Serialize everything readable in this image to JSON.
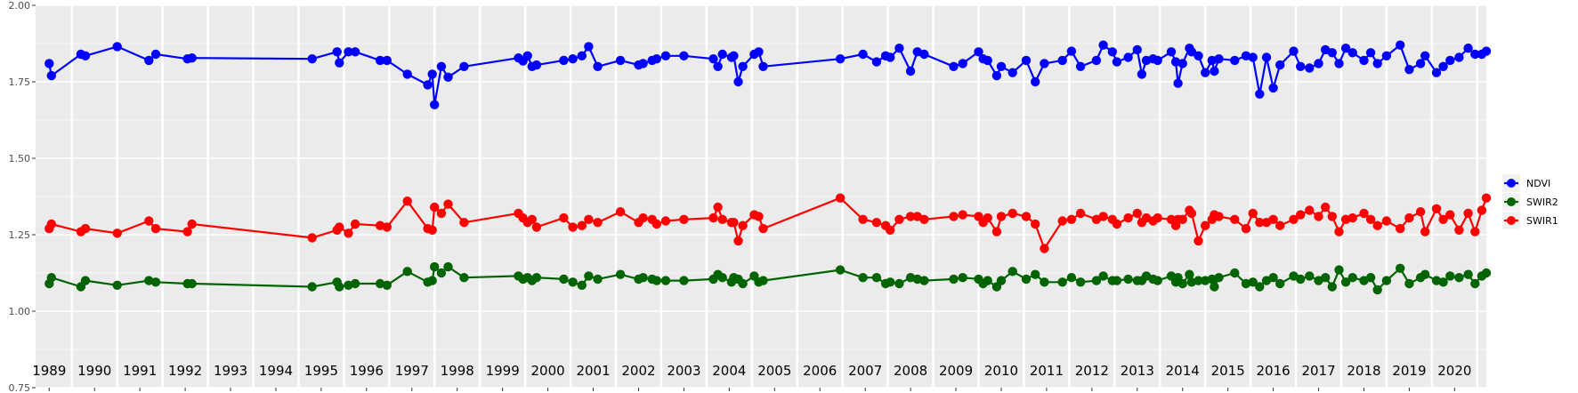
{
  "chart_data": {
    "type": "line",
    "title": "",
    "xlabel": "",
    "ylabel": "",
    "ylim": [
      0.75,
      2.0
    ],
    "xlim": [
      1988.7,
      2020.7
    ],
    "yticks": [
      0.75,
      1.0,
      1.25,
      1.5,
      1.75,
      2.0
    ],
    "ytick_labels": [
      "0.75",
      "1.00",
      "1.25",
      "1.50",
      "1.75",
      "2.00"
    ],
    "x_year_labels": [
      "1989",
      "1990",
      "1991",
      "1992",
      "1993",
      "1994",
      "1995",
      "1996",
      "1997",
      "1998",
      "1999",
      "2000",
      "2001",
      "2002",
      "2003",
      "2004",
      "2005",
      "2006",
      "2007",
      "2008",
      "2009",
      "2010",
      "2011",
      "2012",
      "2013",
      "2014",
      "2015",
      "2016",
      "2017",
      "2018",
      "2019",
      "2020"
    ],
    "grid": true,
    "legend_position": "right",
    "series": [
      {
        "name": "NDVI",
        "color": "#0000ff",
        "x": [
          1989.0,
          1989.05,
          1989.7,
          1989.8,
          1990.5,
          1991.2,
          1991.35,
          1992.05,
          1992.15,
          1994.8,
          1995.35,
          1995.4,
          1995.6,
          1995.75,
          1996.3,
          1996.45,
          1996.9,
          1997.35,
          1997.45,
          1997.5,
          1997.65,
          1997.8,
          1998.15,
          1999.35,
          1999.45,
          1999.55,
          1999.65,
          1999.75,
          2000.35,
          2000.55,
          2000.75,
          2000.9,
          2001.1,
          2001.6,
          2002.0,
          2002.1,
          2002.3,
          2002.4,
          2002.6,
          2003.0,
          2003.65,
          2003.75,
          2003.85,
          2004.05,
          2004.1,
          2004.2,
          2004.3,
          2004.55,
          2004.65,
          2004.75,
          2006.45,
          2006.95,
          2007.25,
          2007.45,
          2007.55,
          2007.75,
          2008.0,
          2008.15,
          2008.3,
          2008.95,
          2009.15,
          2009.5,
          2009.6,
          2009.7,
          2009.9,
          2010.0,
          2010.25,
          2010.55,
          2010.75,
          2010.95,
          2011.35,
          2011.55,
          2011.75,
          2012.1,
          2012.25,
          2012.45,
          2012.55,
          2012.8,
          2013.0,
          2013.1,
          2013.2,
          2013.35,
          2013.45,
          2013.75,
          2013.85,
          2013.9,
          2014.0,
          2014.15,
          2014.2,
          2014.35,
          2014.5,
          2014.65,
          2014.7,
          2014.8,
          2015.15,
          2015.4,
          2015.55,
          2015.7,
          2015.85,
          2016.0,
          2016.15,
          2016.45,
          2016.6,
          2016.8,
          2017.0,
          2017.15,
          2017.3,
          2017.45,
          2017.6,
          2017.75,
          2018.0,
          2018.15,
          2018.3,
          2018.5,
          2018.8,
          2019.0,
          2019.25,
          2019.35,
          2019.6,
          2019.75,
          2019.9,
          2020.1,
          2020.3,
          2020.45,
          2020.6,
          2020.7
        ],
        "values": [
          1.81,
          1.77,
          1.84,
          1.835,
          1.865,
          1.82,
          1.84,
          1.825,
          1.828,
          1.825,
          1.848,
          1.812,
          1.848,
          1.848,
          1.82,
          1.82,
          1.775,
          1.74,
          1.775,
          1.675,
          1.8,
          1.765,
          1.8,
          1.828,
          1.818,
          1.835,
          1.8,
          1.805,
          1.82,
          1.825,
          1.835,
          1.865,
          1.8,
          1.82,
          1.805,
          1.81,
          1.82,
          1.825,
          1.835,
          1.835,
          1.825,
          1.8,
          1.84,
          1.83,
          1.835,
          1.75,
          1.8,
          1.84,
          1.848,
          1.8,
          1.825,
          1.84,
          1.815,
          1.835,
          1.83,
          1.86,
          1.785,
          1.848,
          1.84,
          1.8,
          1.81,
          1.848,
          1.825,
          1.82,
          1.77,
          1.8,
          1.78,
          1.82,
          1.75,
          1.81,
          1.82,
          1.85,
          1.8,
          1.82,
          1.87,
          1.848,
          1.815,
          1.83,
          1.855,
          1.775,
          1.82,
          1.825,
          1.82,
          1.848,
          1.815,
          1.745,
          1.81,
          1.86,
          1.848,
          1.835,
          1.78,
          1.82,
          1.785,
          1.825,
          1.82,
          1.835,
          1.83,
          1.71,
          1.83,
          1.73,
          1.805,
          1.85,
          1.8,
          1.795,
          1.81,
          1.855,
          1.845,
          1.81,
          1.86,
          1.845,
          1.82,
          1.845,
          1.81,
          1.835,
          1.87,
          1.79,
          1.81,
          1.835,
          1.78,
          1.8,
          1.82,
          1.83,
          1.86,
          1.84,
          1.84,
          1.85
        ]
      },
      {
        "name": "SWIR2",
        "color": "#006400",
        "x": [
          1989.0,
          1989.05,
          1989.7,
          1989.8,
          1990.5,
          1991.2,
          1991.35,
          1992.05,
          1992.15,
          1994.8,
          1995.35,
          1995.4,
          1995.6,
          1995.75,
          1996.3,
          1996.45,
          1996.9,
          1997.35,
          1997.45,
          1997.5,
          1997.65,
          1997.8,
          1998.15,
          1999.35,
          1999.45,
          1999.55,
          1999.65,
          1999.75,
          2000.35,
          2000.55,
          2000.75,
          2000.9,
          2001.1,
          2001.6,
          2002.0,
          2002.1,
          2002.3,
          2002.4,
          2002.6,
          2003.0,
          2003.65,
          2003.75,
          2003.85,
          2004.05,
          2004.1,
          2004.2,
          2004.3,
          2004.55,
          2004.65,
          2004.75,
          2006.45,
          2006.95,
          2007.25,
          2007.45,
          2007.55,
          2007.75,
          2008.0,
          2008.15,
          2008.3,
          2008.95,
          2009.15,
          2009.5,
          2009.6,
          2009.7,
          2009.9,
          2010.0,
          2010.25,
          2010.55,
          2010.75,
          2010.95,
          2011.35,
          2011.55,
          2011.75,
          2012.1,
          2012.25,
          2012.45,
          2012.55,
          2012.8,
          2013.0,
          2013.1,
          2013.2,
          2013.35,
          2013.45,
          2013.75,
          2013.85,
          2013.9,
          2014.0,
          2014.15,
          2014.2,
          2014.35,
          2014.5,
          2014.65,
          2014.7,
          2014.8,
          2015.15,
          2015.4,
          2015.55,
          2015.7,
          2015.85,
          2016.0,
          2016.15,
          2016.45,
          2016.6,
          2016.8,
          2017.0,
          2017.15,
          2017.3,
          2017.45,
          2017.6,
          2017.75,
          2018.0,
          2018.15,
          2018.3,
          2018.5,
          2018.8,
          2019.0,
          2019.25,
          2019.35,
          2019.6,
          2019.75,
          2019.9,
          2020.1,
          2020.3,
          2020.45,
          2020.6,
          2020.7
        ],
        "values": [
          1.09,
          1.11,
          1.08,
          1.1,
          1.085,
          1.1,
          1.095,
          1.09,
          1.09,
          1.08,
          1.095,
          1.08,
          1.085,
          1.09,
          1.09,
          1.085,
          1.13,
          1.095,
          1.1,
          1.145,
          1.125,
          1.145,
          1.11,
          1.115,
          1.105,
          1.11,
          1.1,
          1.11,
          1.105,
          1.095,
          1.085,
          1.115,
          1.105,
          1.12,
          1.105,
          1.11,
          1.105,
          1.1,
          1.1,
          1.1,
          1.105,
          1.12,
          1.11,
          1.095,
          1.11,
          1.105,
          1.09,
          1.115,
          1.095,
          1.1,
          1.135,
          1.11,
          1.11,
          1.09,
          1.095,
          1.09,
          1.11,
          1.105,
          1.1,
          1.105,
          1.11,
          1.105,
          1.09,
          1.1,
          1.08,
          1.1,
          1.13,
          1.105,
          1.12,
          1.095,
          1.095,
          1.11,
          1.095,
          1.1,
          1.115,
          1.1,
          1.1,
          1.105,
          1.1,
          1.1,
          1.115,
          1.105,
          1.1,
          1.115,
          1.095,
          1.11,
          1.09,
          1.12,
          1.095,
          1.1,
          1.1,
          1.105,
          1.08,
          1.11,
          1.125,
          1.09,
          1.095,
          1.08,
          1.1,
          1.11,
          1.09,
          1.115,
          1.105,
          1.115,
          1.1,
          1.11,
          1.08,
          1.135,
          1.095,
          1.11,
          1.1,
          1.11,
          1.07,
          1.1,
          1.14,
          1.09,
          1.11,
          1.12,
          1.1,
          1.095,
          1.115,
          1.11,
          1.12,
          1.09,
          1.115,
          1.125
        ]
      },
      {
        "name": "SWIR1",
        "color": "#ff0000",
        "x": [
          1989.0,
          1989.05,
          1989.7,
          1989.8,
          1990.5,
          1991.2,
          1991.35,
          1992.05,
          1992.15,
          1994.8,
          1995.35,
          1995.4,
          1995.6,
          1995.75,
          1996.3,
          1996.45,
          1996.9,
          1997.35,
          1997.45,
          1997.5,
          1997.65,
          1997.8,
          1998.15,
          1999.35,
          1999.45,
          1999.55,
          1999.65,
          1999.75,
          2000.35,
          2000.55,
          2000.75,
          2000.9,
          2001.1,
          2001.6,
          2002.0,
          2002.1,
          2002.3,
          2002.4,
          2002.6,
          2003.0,
          2003.65,
          2003.75,
          2003.85,
          2004.05,
          2004.1,
          2004.2,
          2004.3,
          2004.55,
          2004.65,
          2004.75,
          2006.45,
          2006.95,
          2007.25,
          2007.45,
          2007.55,
          2007.75,
          2008.0,
          2008.15,
          2008.3,
          2008.95,
          2009.15,
          2009.5,
          2009.6,
          2009.7,
          2009.9,
          2010.0,
          2010.25,
          2010.55,
          2010.75,
          2010.95,
          2011.35,
          2011.55,
          2011.75,
          2012.1,
          2012.25,
          2012.45,
          2012.55,
          2012.8,
          2013.0,
          2013.1,
          2013.2,
          2013.35,
          2013.45,
          2013.75,
          2013.85,
          2013.9,
          2014.0,
          2014.15,
          2014.2,
          2014.35,
          2014.5,
          2014.65,
          2014.7,
          2014.8,
          2015.15,
          2015.4,
          2015.55,
          2015.7,
          2015.85,
          2016.0,
          2016.15,
          2016.45,
          2016.6,
          2016.8,
          2017.0,
          2017.15,
          2017.3,
          2017.45,
          2017.6,
          2017.75,
          2018.0,
          2018.15,
          2018.3,
          2018.5,
          2018.8,
          2019.0,
          2019.25,
          2019.35,
          2019.6,
          2019.75,
          2019.9,
          2020.1,
          2020.3,
          2020.45,
          2020.6,
          2020.7
        ],
        "values": [
          1.27,
          1.285,
          1.26,
          1.27,
          1.255,
          1.295,
          1.27,
          1.26,
          1.285,
          1.24,
          1.265,
          1.275,
          1.255,
          1.285,
          1.28,
          1.275,
          1.36,
          1.27,
          1.265,
          1.34,
          1.32,
          1.35,
          1.29,
          1.32,
          1.305,
          1.29,
          1.3,
          1.275,
          1.305,
          1.275,
          1.28,
          1.3,
          1.29,
          1.325,
          1.29,
          1.305,
          1.3,
          1.285,
          1.295,
          1.3,
          1.305,
          1.34,
          1.3,
          1.29,
          1.29,
          1.23,
          1.28,
          1.315,
          1.31,
          1.27,
          1.37,
          1.3,
          1.29,
          1.28,
          1.265,
          1.3,
          1.31,
          1.31,
          1.3,
          1.31,
          1.315,
          1.31,
          1.29,
          1.305,
          1.26,
          1.31,
          1.32,
          1.31,
          1.285,
          1.205,
          1.295,
          1.3,
          1.32,
          1.3,
          1.31,
          1.3,
          1.285,
          1.305,
          1.32,
          1.29,
          1.305,
          1.295,
          1.305,
          1.3,
          1.28,
          1.3,
          1.3,
          1.33,
          1.32,
          1.23,
          1.28,
          1.3,
          1.315,
          1.31,
          1.3,
          1.27,
          1.32,
          1.29,
          1.29,
          1.3,
          1.28,
          1.3,
          1.315,
          1.33,
          1.31,
          1.34,
          1.31,
          1.26,
          1.3,
          1.305,
          1.32,
          1.3,
          1.28,
          1.295,
          1.27,
          1.305,
          1.325,
          1.26,
          1.335,
          1.3,
          1.315,
          1.265,
          1.32,
          1.26,
          1.33,
          1.37
        ]
      }
    ]
  }
}
